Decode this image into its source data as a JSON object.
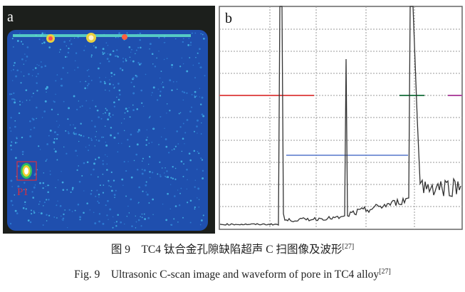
{
  "panel_a": {
    "label": "a",
    "defect_label": "P1",
    "colors": {
      "background": "#1c1f1c",
      "scan": "#1f4fae",
      "defect": "#d83040"
    }
  },
  "panel_b": {
    "label": "b",
    "gate_colors": {
      "red": "#e05050",
      "green": "#2e7d4f",
      "blue": "#5577cc",
      "magenta": "#b04aa0"
    }
  },
  "caption": {
    "zh": "图 9　TC4 钛合金孔隙缺陷超声 C 扫图像及波形",
    "zh_ref": "[27]",
    "en": "Fig. 9　Ultrasonic C-scan image and waveform of pore in TC4 alloy",
    "en_ref": "[27]"
  }
}
